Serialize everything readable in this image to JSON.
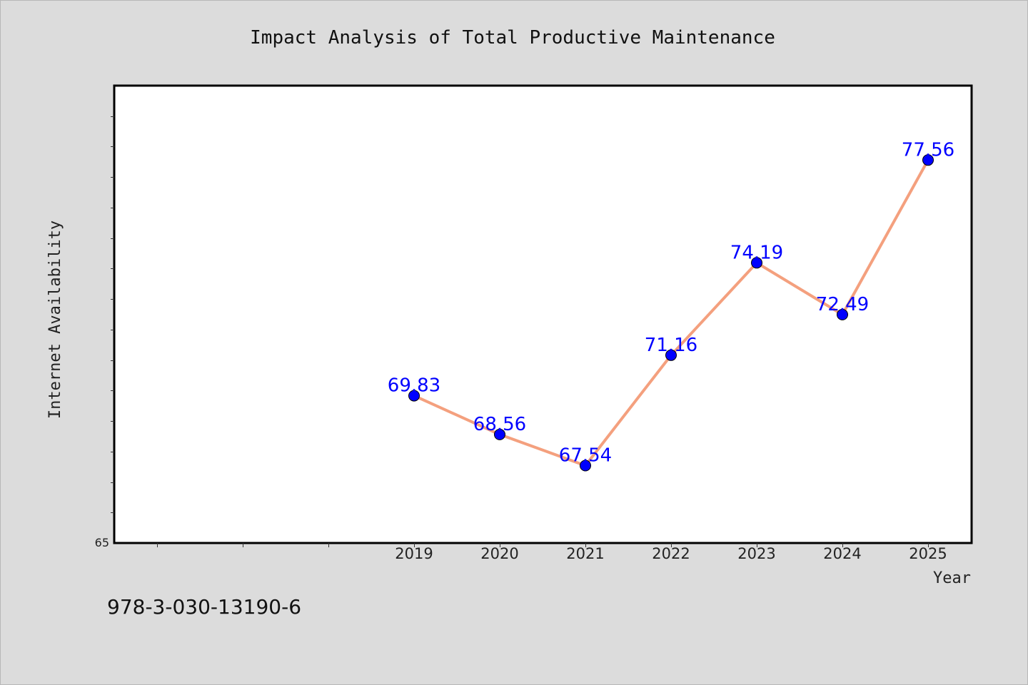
{
  "colors": {
    "line": "#f4a07e",
    "marker": "#0000ff",
    "label": "#0000ff",
    "plot_bg": "#ffffff",
    "page_bg": "#dcdcdc"
  },
  "footer": {
    "isbn": "978-3-030-13190-6"
  },
  "chart_data": {
    "type": "line",
    "title": "Impact Analysis of Total Productive Maintenance",
    "xlabel": "Year",
    "ylabel": "Internet Availability",
    "x": [
      "2019",
      "2020",
      "2021",
      "2022",
      "2023",
      "2024",
      "2025"
    ],
    "series": [
      {
        "values": [
          69.83,
          68.56,
          67.54,
          71.16,
          74.19,
          72.49,
          77.56
        ]
      }
    ],
    "data_labels": [
      "69.83",
      "68.56",
      "67.54",
      "71.16",
      "74.19",
      "72.49",
      "77.56"
    ],
    "ytick_labels": [
      "65"
    ],
    "ylim": [
      65,
      80
    ],
    "y_minor_step": 1,
    "grid": false,
    "legend": "none"
  }
}
